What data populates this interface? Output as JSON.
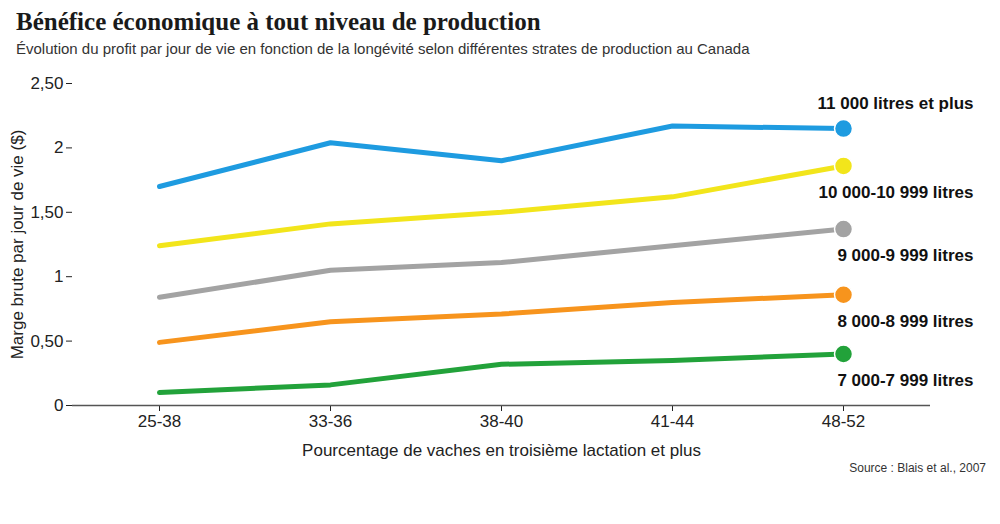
{
  "chart_data": {
    "type": "line",
    "title": "Bénéfice économique à tout niveau de production",
    "subtitle": "Évolution du profit par jour de vie en fonction de la longévité selon différentes strates de production au Canada",
    "x_label": "Pourcentage de vaches en troisième lactation et plus",
    "y_label": "Marge brute par jour de vie ($)",
    "source": "Source : Blais et al., 2007",
    "categories": [
      "25-38",
      "33-36",
      "38-40",
      "41-44",
      "48-52"
    ],
    "series": [
      {
        "name": "7 000-7 999 litres",
        "color": "#22a23a",
        "values": [
          0.1,
          0.16,
          0.32,
          0.35,
          0.4
        ]
      },
      {
        "name": "8 000-8 999 litres",
        "color": "#f7941d",
        "values": [
          0.49,
          0.65,
          0.71,
          0.8,
          0.86
        ]
      },
      {
        "name": "9 000-9 999 litres",
        "color": "#a3a3a3",
        "values": [
          0.84,
          1.05,
          1.11,
          1.24,
          1.37
        ]
      },
      {
        "name": "10 000-10 999 litres",
        "color": "#f2e51b",
        "values": [
          1.24,
          1.41,
          1.5,
          1.62,
          1.86
        ]
      },
      {
        "name": "11 000 litres et plus",
        "color": "#1e9be0",
        "values": [
          1.7,
          2.04,
          1.9,
          2.17,
          2.15
        ]
      }
    ],
    "ylim": [
      0,
      2.5
    ],
    "yticks": [
      0,
      {
        "value": 0.5,
        "label": "0,50"
      },
      1,
      {
        "value": 1.5,
        "label": "1,50"
      },
      2,
      {
        "value": 2.5,
        "label": "2,50"
      }
    ],
    "grid": false
  }
}
